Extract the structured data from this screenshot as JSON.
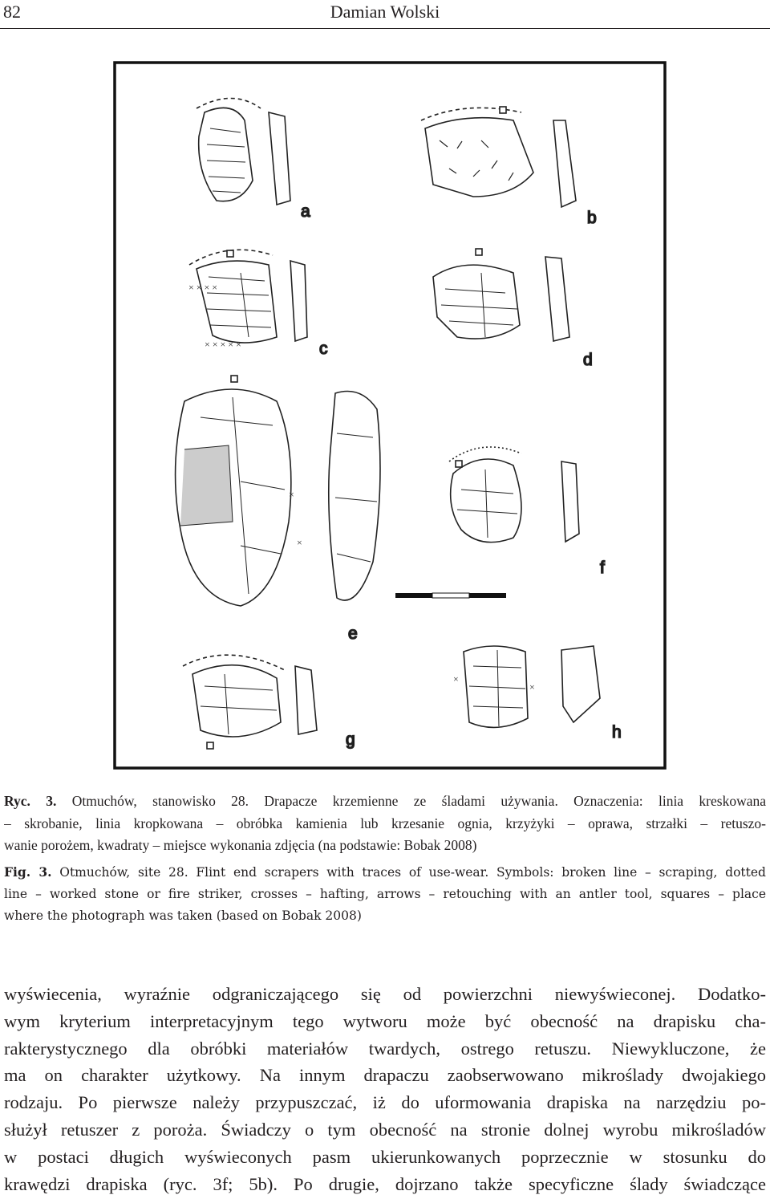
{
  "header": {
    "page_number": "82",
    "author": "Damian Wolski"
  },
  "figure": {
    "labels": [
      "a",
      "b",
      "c",
      "d",
      "e",
      "f",
      "g",
      "h"
    ]
  },
  "caption_pl": {
    "label": "Ryc. 3.",
    "lines": [
      " Otmuchów, stanowisko 28. Drapacze krzemienne ze śladami używania. Oznaczenia: linia kreskowana",
      "– skrobanie, linia kropkowana – obróbka kamienia lub krzesanie ognia, krzyżyki – oprawa, strzałki – retuszo-",
      "wanie porożem, kwadraty – miejsce wykonania zdjęcia (na podstawie: Bobak 2008)"
    ]
  },
  "caption_en": {
    "label": "Fig. 3.",
    "lines": [
      " Otmuchów, site 28. Flint end scrapers with traces of use-wear. Symbols: broken line – scraping, dotted",
      "line – worked stone or fire striker, crosses – hafting, arrows – retouching with an antler tool, squares – place",
      "where the photograph was taken (based on Bobak 2008)"
    ]
  },
  "body": {
    "lines": [
      "wyświecenia, wyraźnie odgraniczającego się od powierzchni niewyświeconej. Dodatko-",
      "wym kryterium interpretacyjnym tego wytworu może być obecność na drapisku cha-",
      "rakterystycznego dla obróbki materiałów twardych, ostrego retuszu. Niewykluczone, że",
      "ma on charakter użytkowy. Na innym drapaczu zaobserwowano mikroślady dwojakiego",
      "rodzaju. Po pierwsze należy przypuszczać, iż do uformowania drapiska na narzędziu po-",
      "służył retuszer z poroża. Świadczy o tym obecność na stronie dolnej wyrobu mikrośladów",
      "w postaci długich wyświeconych pasm ukierunkowanych poprzecznie w stosunku do",
      "krawędzi drapiska (ryc. 3f; 5b). Po drugie, dojrzano także specyficzne ślady świadczące"
    ]
  }
}
